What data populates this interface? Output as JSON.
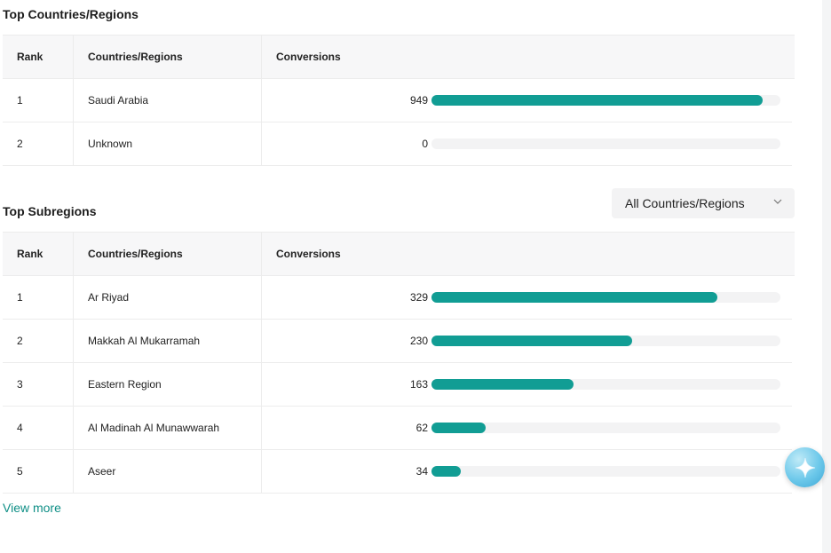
{
  "countries": {
    "title": "Top Countries/Regions",
    "headers": {
      "rank": "Rank",
      "country": "Countries/Regions",
      "conversions": "Conversions"
    },
    "rows": [
      {
        "rank": "1",
        "name": "Saudi Arabia",
        "value": "949",
        "share": 0.95
      },
      {
        "rank": "2",
        "name": "Unknown",
        "value": "0",
        "share": 0
      }
    ]
  },
  "subregions": {
    "title": "Top Subregions",
    "filter": {
      "selected": "All Countries/Regions",
      "icon": "chevron-down-icon"
    },
    "headers": {
      "rank": "Rank",
      "country": "Countries/Regions",
      "conversions": "Conversions"
    },
    "rows": [
      {
        "rank": "1",
        "name": "Ar Riyad",
        "value": "329",
        "share": 0.82
      },
      {
        "rank": "2",
        "name": "Makkah Al Mukarramah",
        "value": "230",
        "share": 0.575
      },
      {
        "rank": "3",
        "name": "Eastern Region",
        "value": "163",
        "share": 0.408
      },
      {
        "rank": "4",
        "name": "Al Madinah Al Munawwarah",
        "value": "62",
        "share": 0.155
      },
      {
        "rank": "5",
        "name": "Aseer",
        "value": "34",
        "share": 0.085
      }
    ],
    "view_more": "View more"
  },
  "colors": {
    "bar": "#119d94",
    "link": "#0f8f86"
  },
  "assistant": {
    "icon": "sparkle-star-icon"
  }
}
